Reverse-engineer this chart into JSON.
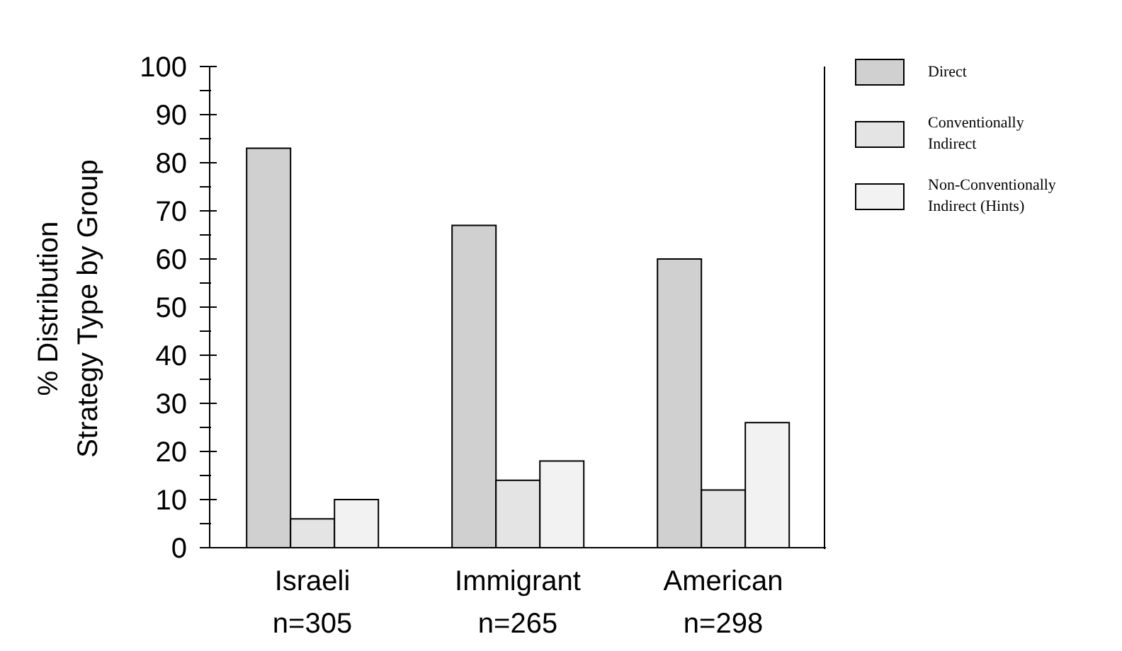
{
  "chart_data": {
    "type": "bar",
    "ylabel": "% Distribution\nStrategy Type by Group",
    "categories": [
      "Israeli\nn=305",
      "Immigrant\nn=265",
      "American\nn=298"
    ],
    "series": [
      {
        "name": "Direct",
        "color": "#d0d0d0",
        "values": [
          83,
          67,
          60
        ]
      },
      {
        "name": "Conventionally\nIndirect",
        "color": "#e4e4e4",
        "values": [
          6,
          14,
          12
        ]
      },
      {
        "name": "Non-Conventionally\nIndirect (Hints)",
        "color": "#f2f2f2",
        "values": [
          10,
          18,
          26
        ]
      }
    ],
    "ylim": [
      0,
      100
    ],
    "yticks": [
      0,
      {
        "value": 5,
        "label": null
      },
      10,
      {
        "value": 15,
        "label": null
      },
      20,
      {
        "value": 25,
        "label": null
      },
      30,
      {
        "value": 35,
        "label": null
      },
      40,
      {
        "value": 45,
        "label": null
      },
      50,
      {
        "value": 55,
        "label": null
      },
      60,
      {
        "value": 65,
        "label": null
      },
      70,
      {
        "value": 75,
        "label": null
      },
      80,
      {
        "value": 85,
        "label": null
      },
      90,
      {
        "value": 95,
        "label": null
      },
      100
    ],
    "grid": false,
    "legend": "top right"
  }
}
